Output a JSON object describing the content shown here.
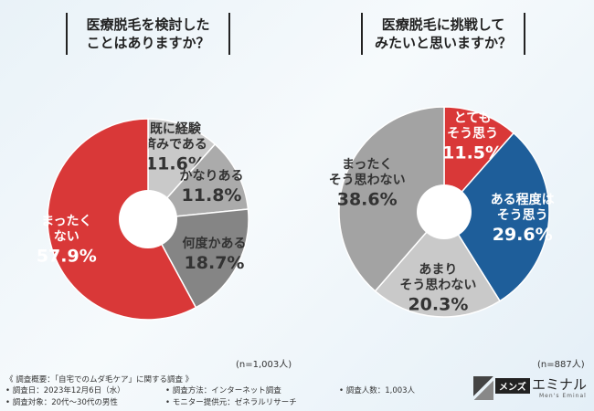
{
  "chart_data": [
    {
      "type": "pie",
      "variant": "donut",
      "title_lines": [
        "医療脱毛を検討した",
        "ことはありますか？"
      ],
      "n_label": "(n=1,003人)",
      "slices": [
        {
          "label_lines": [
            "既に経験",
            "済みである"
          ],
          "value": 11.6,
          "value_text": "11.6%",
          "color": "#c9c9c9",
          "label_color": "#333333"
        },
        {
          "label_lines": [
            "かなりある"
          ],
          "value": 11.8,
          "value_text": "11.8%",
          "color": "#ababab",
          "label_color": "#333333"
        },
        {
          "label_lines": [
            "何度かある"
          ],
          "value": 18.7,
          "value_text": "18.7%",
          "color": "#858585",
          "label_color": "#333333"
        },
        {
          "label_lines": [
            "まったく",
            "ない"
          ],
          "value": 57.9,
          "value_text": "57.9%",
          "color": "#d93838",
          "label_color": "#ffffff"
        }
      ]
    },
    {
      "type": "pie",
      "variant": "donut",
      "title_lines": [
        "医療脱毛に挑戦して",
        "みたいと思いますか？"
      ],
      "n_label": "(n=887人)",
      "slices": [
        {
          "label_lines": [
            "とても",
            "そう思う"
          ],
          "value": 11.5,
          "value_text": "11.5%",
          "color": "#d93838",
          "label_color": "#ffffff"
        },
        {
          "label_lines": [
            "ある程度は",
            "そう思う"
          ],
          "value": 29.6,
          "value_text": "29.6%",
          "color": "#1e5e9a",
          "label_color": "#ffffff"
        },
        {
          "label_lines": [
            "あまり",
            "そう思わない"
          ],
          "value": 20.3,
          "value_text": "20.3%",
          "color": "#c9c9c9",
          "label_color": "#333333"
        },
        {
          "label_lines": [
            "まったく",
            "そう思わない"
          ],
          "value": 38.6,
          "value_text": "38.6%",
          "color": "#a3a3a3",
          "label_color": "#333333"
        }
      ]
    }
  ],
  "footer": {
    "survey_title": "《 調査概要：「自宅でのムダ毛ケア」に関する調査 》",
    "date": "• 調査日：2023年12月6日（水）",
    "method": "• 調査方法：インターネット調査",
    "count": "• 調査人数：1,003人",
    "target": "• 調査対象：20代～30代の男性",
    "provider": "• モニター提供元：ゼネラルリサーチ"
  },
  "logo": {
    "part_a": "メンズ",
    "part_b": "エミナル",
    "sub": "Men's Eminal"
  }
}
